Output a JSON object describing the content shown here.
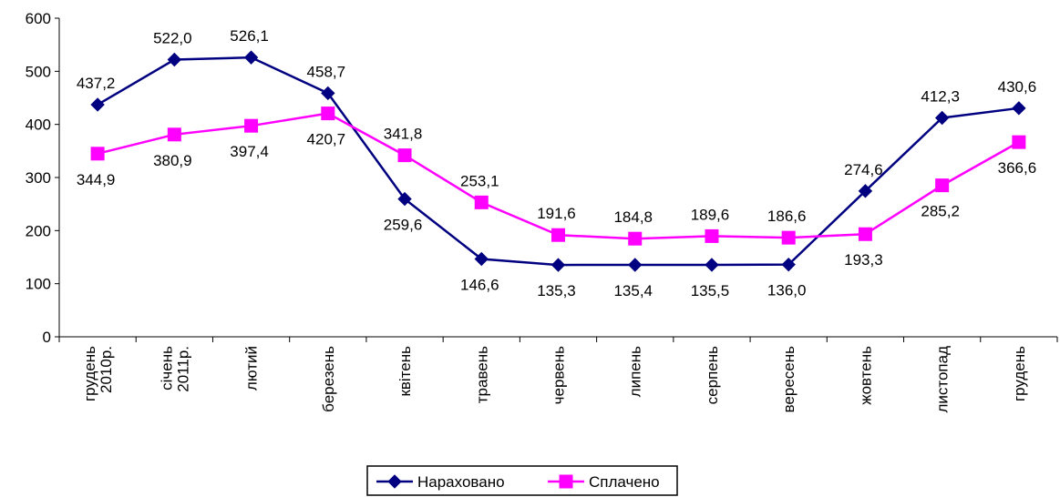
{
  "chart_data": {
    "type": "line",
    "title": "",
    "xlabel": "",
    "ylabel": "",
    "ylim": [
      0,
      600
    ],
    "yticks": [
      0,
      100,
      200,
      300,
      400,
      500,
      600
    ],
    "grid": false,
    "legend_position": "bottom-center",
    "categories": [
      [
        "грудень",
        "2010р."
      ],
      [
        "січень",
        "2011р."
      ],
      [
        "лютий"
      ],
      [
        "березень"
      ],
      [
        "квітень"
      ],
      [
        "травень"
      ],
      [
        "червень"
      ],
      [
        "липень"
      ],
      [
        "серпень"
      ],
      [
        "вересень"
      ],
      [
        "жовтень"
      ],
      [
        "листопад"
      ],
      [
        "грудень"
      ]
    ],
    "series": [
      {
        "name": "Нараховано",
        "color": "#000080",
        "marker": "diamond",
        "values": [
          437.2,
          522.0,
          526.1,
          458.7,
          259.6,
          146.6,
          135.3,
          135.4,
          135.5,
          136.0,
          274.6,
          412.3,
          430.6
        ],
        "labels": [
          "437,2",
          "522,0",
          "526,1",
          "458,7",
          "259,6",
          "146,6",
          "135,3",
          "135,4",
          "135,5",
          "136,0",
          "274,6",
          "412,3",
          "430,6"
        ]
      },
      {
        "name": "Сплачено",
        "color": "#FF00FF",
        "marker": "square",
        "values": [
          344.9,
          380.9,
          397.4,
          420.7,
          341.8,
          253.1,
          191.6,
          184.8,
          189.6,
          186.6,
          193.3,
          285.2,
          366.6
        ],
        "labels": [
          "344,9",
          "380,9",
          "397,4",
          "420,7",
          "341,8",
          "253,1",
          "191,6",
          "184,8",
          "189,6",
          "186,6",
          "193,3",
          "285,2",
          "366,6"
        ]
      }
    ]
  }
}
